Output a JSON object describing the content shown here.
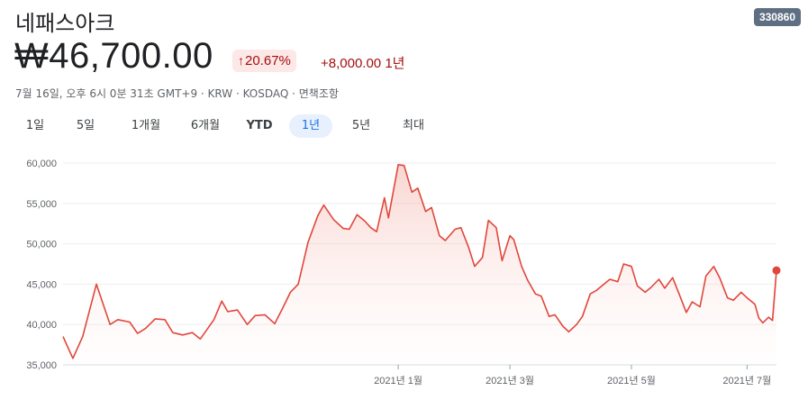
{
  "header": {
    "name": "네패스아크",
    "ticker": "330860",
    "price": "₩46,700.00",
    "change_pct": "20.67%",
    "change_arrow": "↑",
    "change_abs": "+8,000.00 1년",
    "meta": "7월 16일, 오후 6시 0분 31초 GMT+9 · KRW · KOSDAQ · 면책조항"
  },
  "tabs": [
    {
      "label": "1일"
    },
    {
      "label": "5일"
    },
    {
      "label": "1개월"
    },
    {
      "label": "6개월"
    },
    {
      "label": "YTD"
    },
    {
      "label": "1년",
      "selected": true
    },
    {
      "label": "5년"
    },
    {
      "label": "최대"
    }
  ],
  "colors": {
    "line": "#e0473b",
    "fill": "#fbe9e7",
    "negative": "#a50e0e",
    "accent_tab": "#1a73e8"
  },
  "chart_data": {
    "type": "area",
    "title": "",
    "xlabel": "",
    "ylabel": "",
    "ylim": [
      35000,
      60000
    ],
    "yticks": [
      "35,000",
      "40,000",
      "45,000",
      "50,000",
      "55,000",
      "60,000"
    ],
    "ytick_values": [
      35000,
      40000,
      45000,
      50000,
      55000,
      60000
    ],
    "xticks": [
      "2021년 1월",
      "2021년 3월",
      "2021년 5월",
      "2021년 7월"
    ],
    "xtick_dates": [
      "2021-01-04",
      "2021-03-02",
      "2021-05-03",
      "2021-07-01"
    ],
    "grid": true,
    "x_start": "2020-07-17",
    "x_end": "2021-07-16",
    "series": [
      {
        "points": [
          [
            "2020-07-17",
            38500
          ],
          [
            "2020-07-22",
            35800
          ],
          [
            "2020-07-27",
            38500
          ],
          [
            "2020-08-03",
            45000
          ],
          [
            "2020-08-10",
            40000
          ],
          [
            "2020-08-14",
            40600
          ],
          [
            "2020-08-20",
            40300
          ],
          [
            "2020-08-24",
            38900
          ],
          [
            "2020-08-28",
            39500
          ],
          [
            "2020-09-02",
            40700
          ],
          [
            "2020-09-07",
            40600
          ],
          [
            "2020-09-11",
            39000
          ],
          [
            "2020-09-16",
            38700
          ],
          [
            "2020-09-21",
            39000
          ],
          [
            "2020-09-25",
            38200
          ],
          [
            "2020-10-02",
            40600
          ],
          [
            "2020-10-06",
            42900
          ],
          [
            "2020-10-09",
            41600
          ],
          [
            "2020-10-14",
            41800
          ],
          [
            "2020-10-19",
            40000
          ],
          [
            "2020-10-23",
            41100
          ],
          [
            "2020-10-28",
            41200
          ],
          [
            "2020-11-02",
            40100
          ],
          [
            "2020-11-06",
            42000
          ],
          [
            "2020-11-10",
            44000
          ],
          [
            "2020-11-14",
            45000
          ],
          [
            "2020-11-19",
            50200
          ],
          [
            "2020-11-24",
            53500
          ],
          [
            "2020-11-27",
            54800
          ],
          [
            "2020-12-02",
            53000
          ],
          [
            "2020-12-07",
            51900
          ],
          [
            "2020-12-10",
            51800
          ],
          [
            "2020-12-14",
            53600
          ],
          [
            "2020-12-18",
            52800
          ],
          [
            "2020-12-21",
            52000
          ],
          [
            "2020-12-24",
            51500
          ],
          [
            "2020-12-28",
            55700
          ],
          [
            "2020-12-30",
            53200
          ],
          [
            "2021-01-04",
            59800
          ],
          [
            "2021-01-07",
            59700
          ],
          [
            "2021-01-11",
            56400
          ],
          [
            "2021-01-14",
            56900
          ],
          [
            "2021-01-18",
            54000
          ],
          [
            "2021-01-21",
            54500
          ],
          [
            "2021-01-25",
            51000
          ],
          [
            "2021-01-28",
            50400
          ],
          [
            "2021-02-02",
            51800
          ],
          [
            "2021-02-05",
            52000
          ],
          [
            "2021-02-09",
            49500
          ],
          [
            "2021-02-12",
            47200
          ],
          [
            "2021-02-16",
            48300
          ],
          [
            "2021-02-19",
            52900
          ],
          [
            "2021-02-23",
            52000
          ],
          [
            "2021-02-26",
            47900
          ],
          [
            "2021-03-02",
            51000
          ],
          [
            "2021-03-04",
            50500
          ],
          [
            "2021-03-08",
            47200
          ],
          [
            "2021-03-11",
            45500
          ],
          [
            "2021-03-15",
            43800
          ],
          [
            "2021-03-18",
            43500
          ],
          [
            "2021-03-22",
            41000
          ],
          [
            "2021-03-25",
            41200
          ],
          [
            "2021-03-29",
            39800
          ],
          [
            "2021-04-01",
            39100
          ],
          [
            "2021-04-05",
            40000
          ],
          [
            "2021-04-08",
            41000
          ],
          [
            "2021-04-12",
            43800
          ],
          [
            "2021-04-15",
            44200
          ],
          [
            "2021-04-19",
            45000
          ],
          [
            "2021-04-22",
            45600
          ],
          [
            "2021-04-26",
            45300
          ],
          [
            "2021-04-29",
            47500
          ],
          [
            "2021-05-03",
            47200
          ],
          [
            "2021-05-06",
            44800
          ],
          [
            "2021-05-10",
            44000
          ],
          [
            "2021-05-13",
            44600
          ],
          [
            "2021-05-17",
            45600
          ],
          [
            "2021-05-20",
            44500
          ],
          [
            "2021-05-24",
            45800
          ],
          [
            "2021-05-27",
            44000
          ],
          [
            "2021-05-31",
            41500
          ],
          [
            "2021-06-03",
            42800
          ],
          [
            "2021-06-07",
            42200
          ],
          [
            "2021-06-10",
            46000
          ],
          [
            "2021-06-14",
            47200
          ],
          [
            "2021-06-17",
            45800
          ],
          [
            "2021-06-21",
            43300
          ],
          [
            "2021-06-24",
            43000
          ],
          [
            "2021-06-28",
            44000
          ],
          [
            "2021-07-01",
            43300
          ],
          [
            "2021-07-05",
            42500
          ],
          [
            "2021-07-07",
            40800
          ],
          [
            "2021-07-09",
            40200
          ],
          [
            "2021-07-12",
            40900
          ],
          [
            "2021-07-14",
            40500
          ],
          [
            "2021-07-16",
            46700
          ]
        ]
      }
    ]
  }
}
